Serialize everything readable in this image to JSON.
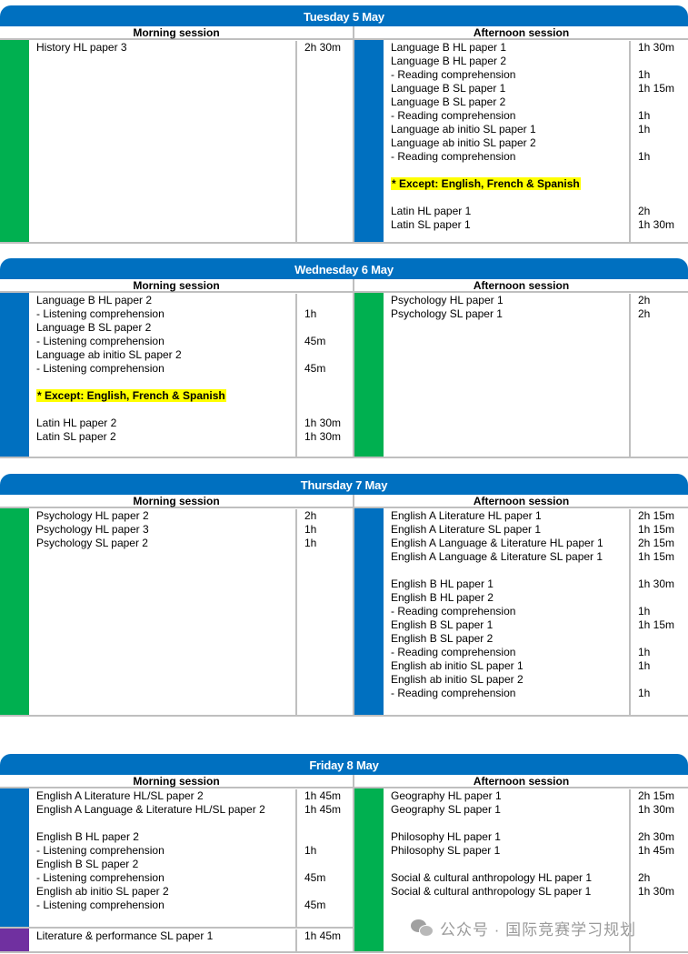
{
  "labels": {
    "morning": "Morning session",
    "afternoon": "Afternoon session"
  },
  "colors": {
    "blue": "#0070C0",
    "green": "#00B050",
    "purple": "#7030A0",
    "highlight": "#FFFF00"
  },
  "days": [
    {
      "title": "Tuesday 5 May",
      "morning": [
        {
          "color": "#00B050",
          "rows": [
            {
              "t": "History HL paper 3",
              "d": "2h 30m"
            }
          ]
        }
      ],
      "afternoon": [
        {
          "color": "#0070C0",
          "rows": [
            {
              "t": "Language B HL paper 1",
              "d": "1h 30m"
            },
            {
              "t": "Language B HL paper 2",
              "d": ""
            },
            {
              "t": "- Reading comprehension",
              "d": "1h"
            },
            {
              "t": "Language B SL paper 1",
              "d": "1h 15m"
            },
            {
              "t": "Language B SL paper 2",
              "d": ""
            },
            {
              "t": "- Reading comprehension",
              "d": "1h"
            },
            {
              "t": "Language ab initio SL paper 1",
              "d": "1h"
            },
            {
              "t": "Language ab initio SL paper 2",
              "d": ""
            },
            {
              "t": "- Reading comprehension",
              "d": "1h"
            },
            {
              "t": "",
              "d": ""
            },
            {
              "t": "* Except: English, French & Spanish",
              "d": "",
              "note": true
            },
            {
              "t": "",
              "d": ""
            },
            {
              "t": "Latin HL paper 1",
              "d": "2h"
            },
            {
              "t": "Latin SL paper 1",
              "d": "1h 30m"
            }
          ]
        }
      ]
    },
    {
      "title": "Wednesday 6 May",
      "morning": [
        {
          "color": "#0070C0",
          "rows": [
            {
              "t": "Language B HL paper 2",
              "d": ""
            },
            {
              "t": "- Listening comprehension",
              "d": "1h"
            },
            {
              "t": "Language B SL paper 2",
              "d": ""
            },
            {
              "t": "- Listening comprehension",
              "d": "45m"
            },
            {
              "t": "Language ab initio SL paper 2",
              "d": ""
            },
            {
              "t": "- Listening comprehension",
              "d": "45m"
            },
            {
              "t": "",
              "d": ""
            },
            {
              "t": "* Except: English, French & Spanish",
              "d": "",
              "note": true
            },
            {
              "t": "",
              "d": ""
            },
            {
              "t": "Latin HL paper 2",
              "d": "1h 30m"
            },
            {
              "t": "Latin SL paper 2",
              "d": "1h 30m"
            }
          ]
        }
      ],
      "afternoon": [
        {
          "color": "#00B050",
          "rows": [
            {
              "t": "Psychology HL paper 1",
              "d": "2h"
            },
            {
              "t": "Psychology SL paper 1",
              "d": "2h"
            }
          ]
        }
      ]
    },
    {
      "title": "Thursday 7 May",
      "morning": [
        {
          "color": "#00B050",
          "rows": [
            {
              "t": "Psychology HL paper 2",
              "d": "2h"
            },
            {
              "t": "Psychology HL paper 3",
              "d": "1h"
            },
            {
              "t": "Psychology SL paper 2",
              "d": "1h"
            }
          ]
        }
      ],
      "afternoon": [
        {
          "color": "#0070C0",
          "rows": [
            {
              "t": "English A Literature HL paper 1",
              "d": "2h 15m"
            },
            {
              "t": "English A Literature SL paper 1",
              "d": "1h 15m"
            },
            {
              "t": "English A Language & Literature HL paper 1",
              "d": "2h 15m"
            },
            {
              "t": "English A Language & Literature SL paper 1",
              "d": "1h 15m"
            },
            {
              "t": "",
              "d": ""
            },
            {
              "t": "English B HL paper 1",
              "d": "1h 30m"
            },
            {
              "t": "English B HL paper 2",
              "d": ""
            },
            {
              "t": "- Reading comprehension",
              "d": "1h"
            },
            {
              "t": "English B SL paper 1",
              "d": "1h 15m"
            },
            {
              "t": "English B SL paper 2",
              "d": ""
            },
            {
              "t": "- Reading comprehension",
              "d": "1h"
            },
            {
              "t": "English ab initio SL paper 1",
              "d": "1h"
            },
            {
              "t": "English ab initio SL paper 2",
              "d": ""
            },
            {
              "t": "- Reading comprehension",
              "d": "1h"
            }
          ]
        }
      ]
    },
    {
      "title": "Friday 8 May",
      "morning": [
        {
          "color": "#0070C0",
          "rows": [
            {
              "t": "English A Literature HL/SL paper 2",
              "d": "1h 45m"
            },
            {
              "t": "English A Language & Literature HL/SL paper 2",
              "d": "1h 45m"
            },
            {
              "t": "",
              "d": ""
            },
            {
              "t": "English B HL paper 2",
              "d": ""
            },
            {
              "t": "- Listening comprehension",
              "d": "1h"
            },
            {
              "t": "English B SL paper 2",
              "d": ""
            },
            {
              "t": "- Listening comprehension",
              "d": "45m"
            },
            {
              "t": "English ab initio SL paper 2",
              "d": ""
            },
            {
              "t": "- Listening comprehension",
              "d": "45m"
            }
          ]
        },
        {
          "color": "#7030A0",
          "rows": [
            {
              "t": "Literature & performance SL paper 1",
              "d": "1h 45m"
            }
          ]
        }
      ],
      "afternoon": [
        {
          "color": "#00B050",
          "rows": [
            {
              "t": "Geography HL paper 1",
              "d": "2h 15m"
            },
            {
              "t": "Geography SL paper 1",
              "d": "1h 30m"
            },
            {
              "t": "",
              "d": ""
            },
            {
              "t": "Philosophy HL paper 1",
              "d": "2h 30m"
            },
            {
              "t": "Philosophy SL paper 1",
              "d": "1h 45m"
            },
            {
              "t": "",
              "d": ""
            },
            {
              "t": "Social & cultural anthropology HL paper 1",
              "d": "2h"
            },
            {
              "t": "Social & cultural anthropology SL paper 1",
              "d": "1h 30m"
            }
          ]
        }
      ]
    }
  ],
  "watermark": "公众号 · 国际竞赛学习规划"
}
